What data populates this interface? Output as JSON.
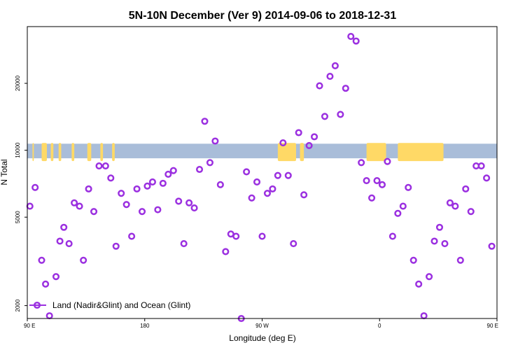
{
  "colors": {
    "point": "#9b30e0",
    "band": "#a9bdd9",
    "land": "#ffd966",
    "frame": "#000000"
  },
  "chart_data": {
    "type": "scatter",
    "title": "5N-10N December (Ver 9)   2014-09-06 to 2018-12-31",
    "xlabel": "Longitude (deg E)",
    "ylabel": "N Total",
    "xlim": [
      90,
      450
    ],
    "ylim": [
      1750,
      36000
    ],
    "yscale": "log",
    "x_ticks": [
      {
        "value": 90,
        "label": "90 E"
      },
      {
        "value": 180,
        "label": "180"
      },
      {
        "value": 270,
        "label": "90 W"
      },
      {
        "value": 360,
        "label": "0"
      },
      {
        "value": 450,
        "label": "90 E"
      }
    ],
    "x_ticks_alt": [
      {
        "value": 450,
        "label": "90 E"
      },
      {
        "value": 540,
        "label": "180"
      }
    ],
    "y_ticks": [
      {
        "value": 2000,
        "label": "2000"
      },
      {
        "value": 5000,
        "label": "5000"
      },
      {
        "value": 10000,
        "label": "10000"
      },
      {
        "value": 20000,
        "label": "20000"
      }
    ],
    "legend": {
      "position": "bottom-left",
      "label": "Land (Nadir&Glint) and Ocean (Glint)"
    },
    "band": {
      "y_min": 9200,
      "y_max": 10700
    },
    "land_segments": [
      [
        101,
        105
      ],
      [
        108,
        110
      ],
      [
        114,
        116
      ],
      [
        124,
        126
      ],
      [
        282,
        296
      ],
      [
        299,
        302
      ],
      [
        350,
        365
      ],
      [
        374,
        409
      ],
      [
        454,
        455
      ],
      [
        496,
        499
      ],
      [
        506,
        508
      ],
      [
        515,
        517
      ]
    ],
    "series": [
      {
        "name": "Land (Nadir&Glint) and Ocean (Glint)",
        "points": [
          [
            92,
            5600
          ],
          [
            96,
            6800
          ],
          [
            101,
            3200
          ],
          [
            104,
            2500
          ],
          [
            107,
            1800
          ],
          [
            112,
            2700
          ],
          [
            115,
            3900
          ],
          [
            118,
            4500
          ],
          [
            122,
            3800
          ],
          [
            126,
            5800
          ],
          [
            130,
            5600
          ],
          [
            133,
            3200
          ],
          [
            137,
            6700
          ],
          [
            141,
            5300
          ],
          [
            145,
            8500
          ],
          [
            150,
            8500
          ],
          [
            154,
            7500
          ],
          [
            158,
            3700
          ],
          [
            162,
            6400
          ],
          [
            166,
            5700
          ],
          [
            170,
            4100
          ],
          [
            174,
            6700
          ],
          [
            178,
            5300
          ],
          [
            182,
            6900
          ],
          [
            186,
            7200
          ],
          [
            190,
            5400
          ],
          [
            194,
            7100
          ],
          [
            198,
            7800
          ],
          [
            202,
            8100
          ],
          [
            206,
            5900
          ],
          [
            210,
            3800
          ],
          [
            214,
            5800
          ],
          [
            218,
            5500
          ],
          [
            222,
            8200
          ],
          [
            226,
            13500
          ],
          [
            230,
            8800
          ],
          [
            234,
            11000
          ],
          [
            238,
            7000
          ],
          [
            242,
            3500
          ],
          [
            246,
            4200
          ],
          [
            250,
            4100
          ],
          [
            254,
            1750
          ],
          [
            258,
            8000
          ],
          [
            262,
            6100
          ],
          [
            266,
            7200
          ],
          [
            270,
            4100
          ],
          [
            274,
            6400
          ],
          [
            278,
            6700
          ],
          [
            282,
            7700
          ],
          [
            286,
            10800
          ],
          [
            290,
            7700
          ],
          [
            294,
            3800
          ],
          [
            298,
            12000
          ],
          [
            302,
            6300
          ],
          [
            306,
            10500
          ],
          [
            310,
            11500
          ],
          [
            314,
            19500
          ],
          [
            318,
            14200
          ],
          [
            322,
            21500
          ],
          [
            326,
            24000
          ],
          [
            330,
            14500
          ],
          [
            334,
            19000
          ],
          [
            338,
            32500
          ],
          [
            342,
            31000
          ],
          [
            346,
            8800
          ],
          [
            350,
            7300
          ],
          [
            354,
            6100
          ],
          [
            358,
            7300
          ],
          [
            362,
            7000
          ],
          [
            366,
            8900
          ],
          [
            370,
            4100
          ],
          [
            374,
            5200
          ],
          [
            378,
            5600
          ],
          [
            382,
            6800
          ],
          [
            386,
            3200
          ],
          [
            390,
            2500
          ],
          [
            394,
            1800
          ],
          [
            398,
            2700
          ],
          [
            402,
            3900
          ],
          [
            406,
            4500
          ],
          [
            410,
            3800
          ],
          [
            414,
            5800
          ],
          [
            418,
            5600
          ],
          [
            422,
            3200
          ],
          [
            426,
            6700
          ],
          [
            430,
            5300
          ],
          [
            434,
            8500
          ],
          [
            438,
            8500
          ],
          [
            442,
            7500
          ],
          [
            446,
            3700
          ]
        ]
      }
    ]
  }
}
